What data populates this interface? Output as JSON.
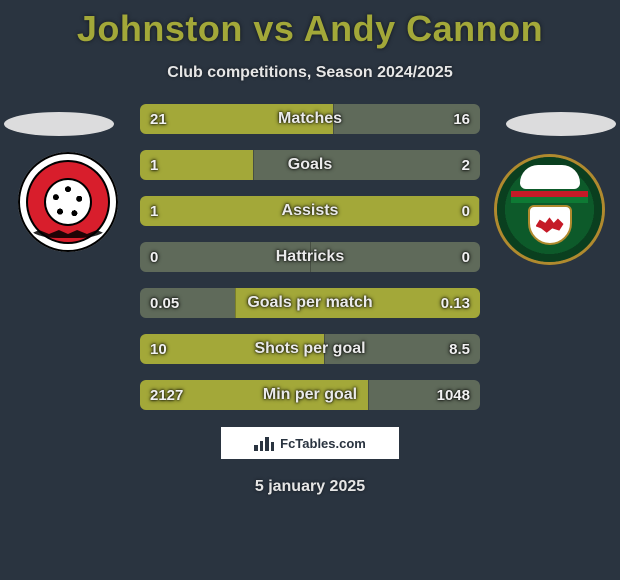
{
  "title": "Johnston vs Andy Cannon",
  "subtitle": "Club competitions, Season 2024/2025",
  "date": "5 january 2025",
  "footer_brand": "FcTables.com",
  "colors": {
    "background": "#2a3440",
    "title": "#a3a839",
    "bar_primary": "#a3a839",
    "bar_secondary": "#5f6a5a",
    "text_light": "#e6e6e6",
    "ellipse": "#e6e6e6"
  },
  "crest_left": {
    "name": "Fleetwood Town",
    "colors": {
      "outer": "#ffffff",
      "inner": "#d81e2c",
      "accent": "#000000"
    }
  },
  "crest_right": {
    "name": "Wrexham",
    "colors": {
      "ring": "#b08a2e",
      "field": "#0d5a2a",
      "dragon": "#c51a27",
      "white": "#ffffff"
    }
  },
  "stats": [
    {
      "label": "Matches",
      "left_value": "21",
      "right_value": "16",
      "left_pct": 56.8,
      "left_color": "#a3a839",
      "right_color": "#5f6a5a"
    },
    {
      "label": "Goals",
      "left_value": "1",
      "right_value": "2",
      "left_pct": 33.3,
      "left_color": "#a3a839",
      "right_color": "#5f6a5a"
    },
    {
      "label": "Assists",
      "left_value": "1",
      "right_value": "0",
      "left_pct": 100,
      "left_color": "#a3a839",
      "right_color": "#5f6a5a"
    },
    {
      "label": "Hattricks",
      "left_value": "0",
      "right_value": "0",
      "left_pct": 50,
      "left_color": "#5f6a5a",
      "right_color": "#5f6a5a"
    },
    {
      "label": "Goals per match",
      "left_value": "0.05",
      "right_value": "0.13",
      "left_pct": 27.8,
      "left_color": "#5f6a5a",
      "right_color": "#a3a839"
    },
    {
      "label": "Shots per goal",
      "left_value": "10",
      "right_value": "8.5",
      "left_pct": 54.1,
      "left_color": "#a3a839",
      "right_color": "#5f6a5a"
    },
    {
      "label": "Min per goal",
      "left_value": "2127",
      "right_value": "1048",
      "left_pct": 67.0,
      "left_color": "#a3a839",
      "right_color": "#5f6a5a"
    }
  ]
}
